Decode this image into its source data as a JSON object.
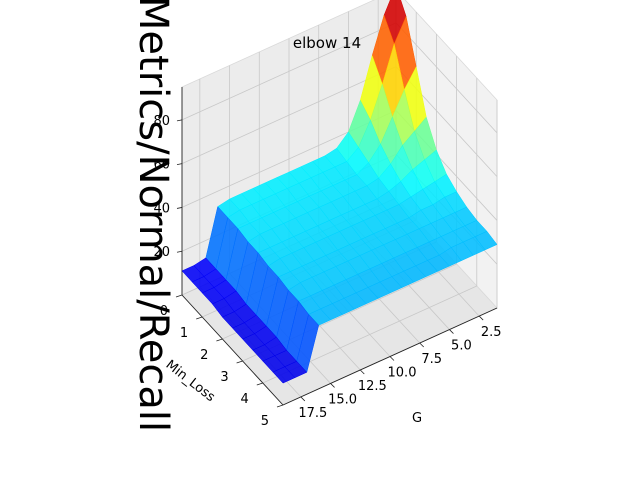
{
  "chart_data": {
    "type": "surface3d",
    "title": "elbow 14",
    "xlabel": "G",
    "ylabel": "Min_Loss",
    "zlabel": "Metrics/Normal/Recall",
    "x_ticks": [
      "2.5",
      "5.0",
      "7.5",
      "10.0",
      "12.5",
      "15.0",
      "17.5"
    ],
    "y_ticks": [
      "0",
      "1",
      "2",
      "3",
      "4",
      "5"
    ],
    "z_ticks": [
      "20",
      "40",
      "60",
      "80"
    ],
    "xlim": [
      1,
      19
    ],
    "ylim": [
      0,
      5
    ],
    "zlim": [
      0,
      95
    ],
    "colormap": "jet",
    "grid": true,
    "G": [
      1,
      2,
      3,
      4,
      5,
      6,
      7,
      8,
      9,
      10,
      11,
      12,
      13,
      14,
      15,
      16,
      17,
      18,
      19
    ],
    "Min_Loss": [
      0,
      0.5,
      1,
      1.5,
      2,
      2.5,
      3,
      3.5,
      4,
      4.5,
      5
    ],
    "Recall": [
      [
        97,
        88,
        70,
        52,
        42,
        36,
        33,
        31,
        30,
        30,
        29
      ],
      [
        86,
        78,
        62,
        48,
        40,
        35,
        33,
        31,
        30,
        30,
        29
      ],
      [
        70,
        62,
        52,
        44,
        38,
        34,
        32,
        31,
        30,
        30,
        29
      ],
      [
        52,
        48,
        42,
        38,
        35,
        33,
        32,
        31,
        30,
        30,
        29
      ],
      [
        40,
        38,
        36,
        34,
        33,
        32,
        31,
        31,
        30,
        29,
        29
      ],
      [
        35,
        34,
        33,
        33,
        32,
        32,
        31,
        31,
        30,
        29,
        29
      ],
      [
        34,
        34,
        33,
        33,
        32,
        32,
        31,
        31,
        30,
        29,
        29
      ],
      [
        34,
        34,
        33,
        33,
        32,
        32,
        31,
        31,
        30,
        29,
        29
      ],
      [
        34,
        34,
        33,
        33,
        32,
        32,
        31,
        31,
        30,
        29,
        29
      ],
      [
        34,
        34,
        33,
        33,
        32,
        32,
        31,
        31,
        30,
        29,
        29
      ],
      [
        34,
        34,
        33,
        33,
        32,
        32,
        31,
        31,
        30,
        29,
        29
      ],
      [
        34,
        34,
        33,
        33,
        32,
        32,
        31,
        31,
        30,
        29,
        29
      ],
      [
        34,
        34,
        33,
        33,
        32,
        32,
        31,
        31,
        30,
        29,
        29
      ],
      [
        34,
        34,
        33,
        33,
        32,
        32,
        31,
        31,
        30,
        29,
        29
      ],
      [
        34,
        34,
        33,
        33,
        32,
        32,
        31,
        31,
        30,
        29,
        29
      ],
      [
        33,
        33,
        33,
        32,
        32,
        31,
        31,
        30,
        30,
        29,
        29
      ],
      [
        12,
        12,
        12,
        12,
        11,
        11,
        11,
        11,
        10,
        10,
        10
      ],
      [
        11,
        11,
        11,
        11,
        10,
        10,
        10,
        10,
        10,
        10,
        10
      ],
      [
        11,
        11,
        11,
        11,
        10,
        10,
        10,
        10,
        10,
        10,
        10
      ]
    ]
  }
}
